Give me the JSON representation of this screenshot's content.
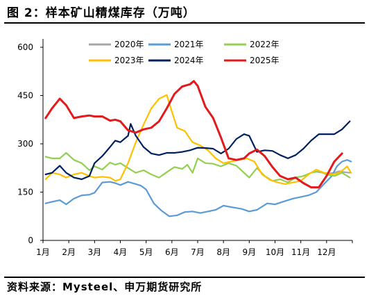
{
  "title": "图 2：样本矿山精煤库存（万吨）",
  "source": "资料来源：Mysteel、申万期货研究所",
  "chart_data": {
    "type": "line",
    "title": "",
    "xlabel": "",
    "ylabel": "",
    "ylim": [
      0,
      600
    ],
    "yticks": [
      0,
      150,
      300,
      450,
      600
    ],
    "xlim": [
      1,
      13
    ],
    "xticks": [
      {
        "label": "1月",
        "value": 1
      },
      {
        "label": "2月",
        "value": 2
      },
      {
        "label": "3月",
        "value": 3
      },
      {
        "label": "4月",
        "value": 4
      },
      {
        "label": "5月",
        "value": 5
      },
      {
        "label": "6月",
        "value": 6
      },
      {
        "label": "7月",
        "value": 7
      },
      {
        "label": "8月",
        "value": 8
      },
      {
        "label": "9月",
        "value": 9
      },
      {
        "label": "10月",
        "value": 10
      },
      {
        "label": "11月",
        "value": 11
      },
      {
        "label": "12月",
        "value": 12
      }
    ],
    "grid": false,
    "legend_position": "top",
    "series": [
      {
        "name": "2020年",
        "color": "#A6A6A6",
        "x": [
          11.5,
          11.7,
          11.9,
          12.1,
          12.3,
          12.5,
          12.7,
          12.9
        ],
        "y": [
          215,
          212,
          210,
          208,
          210,
          215,
          212,
          210
        ]
      },
      {
        "name": "2021年",
        "color": "#5B9BD5",
        "x": [
          1.1,
          1.35,
          1.65,
          1.9,
          2.2,
          2.5,
          2.8,
          3.0,
          3.3,
          3.6,
          3.8,
          4.0,
          4.3,
          4.6,
          4.8,
          5.0,
          5.3,
          5.6,
          5.9,
          6.2,
          6.5,
          6.8,
          7.1,
          7.4,
          7.7,
          8.0,
          8.4,
          8.7,
          9.0,
          9.3,
          9.7,
          10.0,
          10.3,
          10.7,
          11.0,
          11.3,
          11.6,
          11.9,
          12.2,
          12.4,
          12.6,
          12.8,
          12.95
        ],
        "y": [
          115,
          120,
          125,
          112,
          130,
          140,
          142,
          148,
          180,
          182,
          178,
          172,
          182,
          175,
          170,
          158,
          115,
          92,
          75,
          78,
          88,
          90,
          85,
          90,
          95,
          108,
          102,
          98,
          90,
          95,
          115,
          112,
          120,
          130,
          135,
          140,
          150,
          175,
          200,
          230,
          245,
          250,
          245
        ]
      },
      {
        "name": "2022年",
        "color": "#92D050",
        "x": [
          1.1,
          1.35,
          1.65,
          1.9,
          2.2,
          2.5,
          2.8,
          3.0,
          3.3,
          3.6,
          3.8,
          4.0,
          4.3,
          4.6,
          4.9,
          5.2,
          5.5,
          5.8,
          6.1,
          6.4,
          6.6,
          6.8,
          7.0,
          7.3,
          7.6,
          7.9,
          8.2,
          8.5,
          8.8,
          9.0,
          9.3,
          9.6,
          9.9,
          10.2,
          10.5,
          10.8,
          11.1,
          11.4,
          11.7,
          12.0,
          12.3,
          12.6,
          12.9
        ],
        "y": [
          260,
          255,
          255,
          272,
          250,
          240,
          218,
          230,
          220,
          242,
          235,
          240,
          225,
          210,
          218,
          205,
          195,
          212,
          228,
          222,
          235,
          210,
          255,
          240,
          238,
          230,
          240,
          232,
          210,
          195,
          225,
          200,
          185,
          190,
          180,
          195,
          200,
          210,
          215,
          205,
          200,
          210,
          195
        ]
      },
      {
        "name": "2023年",
        "color": "#FFC000",
        "x": [
          1.1,
          1.35,
          1.65,
          1.9,
          2.2,
          2.5,
          2.8,
          3.0,
          3.3,
          3.6,
          3.8,
          4.0,
          4.3,
          4.6,
          4.9,
          5.2,
          5.5,
          5.8,
          6.0,
          6.2,
          6.5,
          6.8,
          7.1,
          7.4,
          7.7,
          8.0,
          8.3,
          8.6,
          8.9,
          9.2,
          9.5,
          9.8,
          10.1,
          10.4,
          10.7,
          11.0,
          11.3,
          11.6,
          11.9,
          12.2,
          12.5,
          12.8,
          12.95
        ],
        "y": [
          190,
          210,
          205,
          195,
          205,
          210,
          200,
          195,
          198,
          195,
          185,
          190,
          240,
          305,
          360,
          410,
          440,
          452,
          400,
          350,
          340,
          305,
          295,
          280,
          255,
          240,
          245,
          250,
          255,
          245,
          205,
          188,
          180,
          175,
          180,
          185,
          205,
          220,
          210,
          205,
          210,
          230,
          210
        ]
      },
      {
        "name": "2024年",
        "color": "#002060",
        "x": [
          1.1,
          1.35,
          1.65,
          1.9,
          2.2,
          2.5,
          2.8,
          3.0,
          3.3,
          3.6,
          3.8,
          4.0,
          4.3,
          4.4,
          4.6,
          4.9,
          5.2,
          5.5,
          5.8,
          6.1,
          6.4,
          6.7,
          7.0,
          7.3,
          7.6,
          7.9,
          8.2,
          8.5,
          8.8,
          9.0,
          9.3,
          9.6,
          9.9,
          10.2,
          10.5,
          10.8,
          11.1,
          11.4,
          11.7,
          12.0,
          12.3,
          12.6,
          12.9
        ],
        "y": [
          205,
          210,
          232,
          210,
          195,
          190,
          200,
          240,
          262,
          290,
          310,
          305,
          325,
          362,
          325,
          290,
          270,
          265,
          272,
          272,
          275,
          280,
          288,
          287,
          285,
          270,
          285,
          315,
          330,
          325,
          275,
          280,
          278,
          265,
          255,
          265,
          285,
          310,
          330,
          330,
          330,
          345,
          370
        ]
      },
      {
        "name": "2025年",
        "color": "#E31A1C",
        "x": [
          1.1,
          1.35,
          1.65,
          1.9,
          2.2,
          2.5,
          2.8,
          3.0,
          3.3,
          3.6,
          3.8,
          4.0,
          4.3,
          4.6,
          4.9,
          5.2,
          5.5,
          5.8,
          6.1,
          6.4,
          6.7,
          6.85,
          7.0,
          7.3,
          7.6,
          7.9,
          8.2,
          8.5,
          8.8,
          9.0,
          9.3,
          9.6,
          9.9,
          10.2,
          10.5,
          10.8,
          11.1,
          11.4,
          11.7,
          12.0,
          12.3,
          12.6
        ],
        "y": [
          380,
          410,
          440,
          420,
          380,
          385,
          388,
          385,
          385,
          372,
          375,
          370,
          342,
          335,
          345,
          350,
          370,
          410,
          455,
          478,
          485,
          495,
          480,
          415,
          380,
          320,
          255,
          250,
          255,
          270,
          282,
          262,
          228,
          200,
          190,
          195,
          178,
          165,
          165,
          200,
          245,
          270
        ]
      }
    ]
  }
}
